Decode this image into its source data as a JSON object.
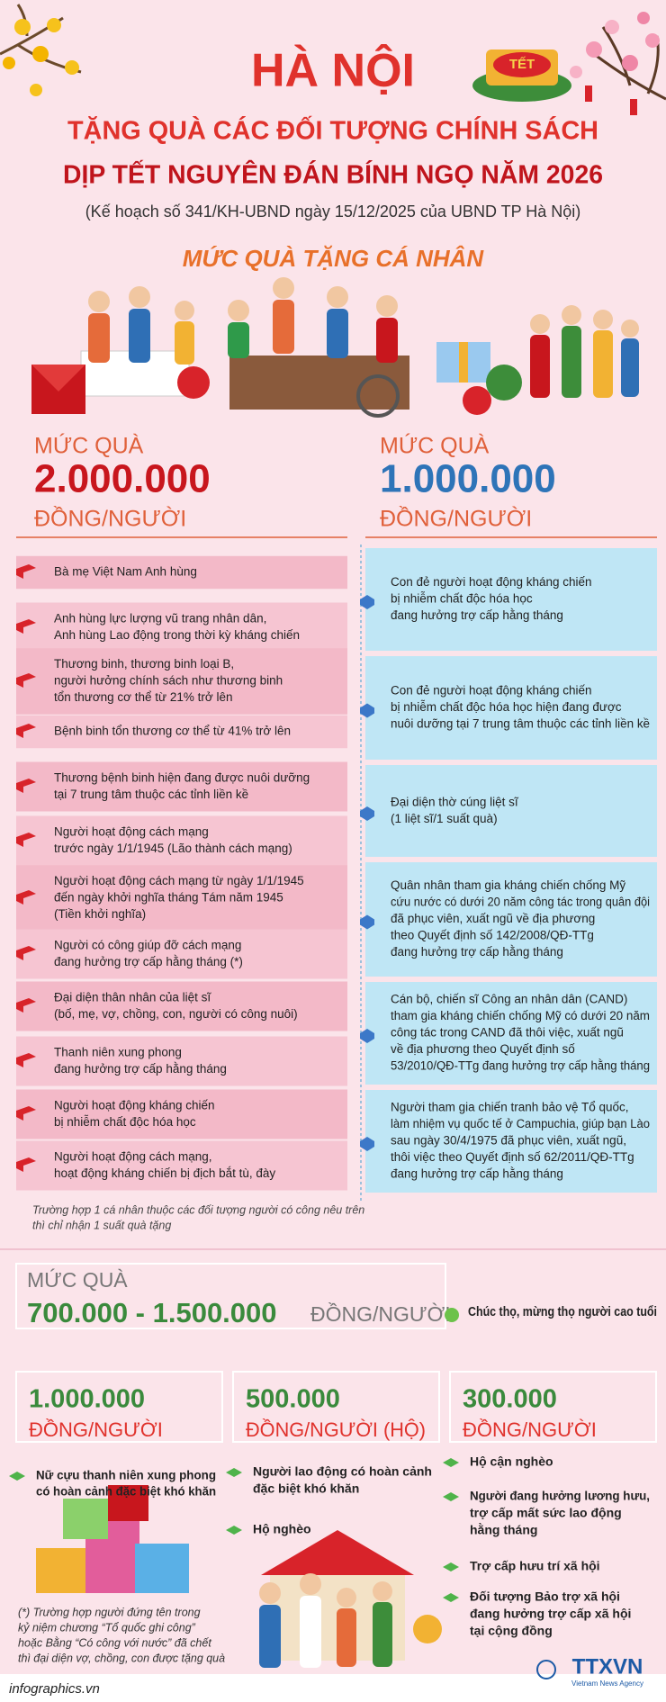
{
  "header": {
    "title": "HÀ NỘI",
    "subtitle1": "TẶNG QUÀ CÁC ĐỐI TƯỢNG CHÍNH SÁCH",
    "subtitle2": "DỊP TẾT NGUYÊN ĐÁN BÍNH NGỌ NĂM 2026",
    "note": "(Kế hoạch số 341/KH-UBND ngày 15/12/2025 của UBND TP Hà Nội)",
    "badge": "TẾT"
  },
  "section_title": "MỨC QUÀ TẶNG CÁ NHÂN",
  "personal": {
    "left": {
      "label": "MỨC QUÀ",
      "amount": "2.000.000",
      "unit": "ĐỒNG/NGƯỜI",
      "items": [
        [
          "Bà mẹ Việt Nam Anh hùng"
        ],
        [
          "Anh hùng lực lượng vũ trang nhân dân,",
          "Anh hùng Lao động trong thời kỳ kháng chiến"
        ],
        [
          "Thương binh, thương binh loại B,",
          "người hưởng chính sách như thương binh",
          "tổn thương cơ thể từ 21% trở lên"
        ],
        [
          "Bệnh binh tổn thương cơ thể từ 41% trở lên"
        ],
        [
          "Thương bệnh binh hiện đang được nuôi dưỡng",
          "tại 7 trung tâm thuộc các tỉnh liền kề"
        ],
        [
          "Người hoạt động cách mạng",
          "trước ngày 1/1/1945 (Lão thành cách mạng)"
        ],
        [
          "Người hoạt động cách mạng từ ngày 1/1/1945",
          "đến ngày khởi nghĩa tháng Tám năm 1945",
          "(Tiền khởi nghĩa)"
        ],
        [
          "Người có công giúp đỡ cách mạng",
          "đang hưởng trợ cấp hằng tháng (*)"
        ],
        [
          "Đại diện thân nhân của liệt sĩ",
          "(bố, mẹ, vợ, chồng, con, người có công nuôi)"
        ],
        [
          "Thanh niên xung phong",
          "đang hưởng trợ cấp hằng tháng"
        ],
        [
          "Người hoạt động kháng chiến",
          "bị nhiễm chất độc hóa học"
        ],
        [
          "Người hoạt động cách mạng,",
          "hoạt động kháng chiến bị địch bắt tù, đày"
        ]
      ]
    },
    "right": {
      "label": "MỨC QUÀ",
      "amount": "1.000.000",
      "unit": "ĐỒNG/NGƯỜI",
      "items": [
        [
          "Con đẻ người hoạt động kháng chiến",
          "bị nhiễm chất độc hóa học",
          "đang hưởng trợ cấp hằng tháng"
        ],
        [
          "Con đẻ người hoạt động kháng chiến",
          "bị nhiễm chất độc hóa học hiện đang được",
          "nuôi dưỡng tại 7 trung tâm thuộc các tỉnh liền kề"
        ],
        [
          "Đại diện thờ cúng liệt sĩ",
          "(1 liệt sĩ/1 suất quà)"
        ],
        [
          "Quân nhân tham gia kháng chiến chống Mỹ",
          "cứu nước có dưới 20 năm công tác trong quân đội",
          "đã phục viên, xuất ngũ về địa phương",
          "theo Quyết định số 142/2008/QĐ-TTg",
          "đang hưởng trợ cấp hằng tháng"
        ],
        [
          "Cán bộ, chiến sĩ Công an nhân dân (CAND)",
          "tham gia kháng chiến chống Mỹ có dưới 20 năm",
          "công tác trong CAND đã thôi việc, xuất ngũ",
          "về địa phương theo Quyết định số",
          "53/2010/QĐ-TTg đang hưởng trợ cấp hằng tháng"
        ],
        [
          "Người tham gia chiến tranh bảo vệ Tổ quốc,",
          "làm nhiệm vụ quốc tế ở Campuchia, giúp bạn Lào",
          "sau ngày 30/4/1975 đã phục viên, xuất ngũ,",
          "thôi việc theo Quyết định số 62/2011/QĐ-TTg",
          "đang hưởng trợ cấp hằng tháng"
        ]
      ]
    },
    "footnote": [
      "Trường hợp 1 cá nhân thuộc các đối tượng người có công nêu trên",
      "thì chỉ nhận 1 suất quà tặng"
    ]
  },
  "elderly": {
    "label": "MỨC QUÀ",
    "amount": "700.000 - 1.500.000",
    "unit": "ĐỒNG/NGƯỜI",
    "item": "Chúc thọ, mừng thọ người cao tuổi"
  },
  "groups": [
    {
      "amount": "1.000.000",
      "unit": "ĐỒNG/NGƯỜI",
      "items": [
        [
          "Nữ cựu thanh niên xung phong",
          "có hoàn cảnh đặc biệt khó khăn"
        ]
      ]
    },
    {
      "amount": "500.000",
      "unit": "ĐỒNG/NGƯỜI (HỘ)",
      "items": [
        [
          "Người lao động có hoàn cảnh",
          "đặc biệt khó khăn"
        ],
        [
          "Hộ nghèo"
        ]
      ]
    },
    {
      "amount": "300.000",
      "unit": "ĐỒNG/NGƯỜI",
      "items": [
        [
          "Hộ cận nghèo"
        ],
        [
          "Người đang hưởng lương hưu,",
          "trợ cấp mất sức lao động",
          "hằng tháng"
        ],
        [
          "Trợ cấp hưu trí xã hội"
        ],
        [
          "Đối tượng Bảo trợ xã hội",
          "đang hưởng trợ cấp xã hội",
          "tại cộng đồng"
        ]
      ]
    }
  ],
  "bottom_note": [
    "(*) Trường hợp người đứng tên trong",
    "kỷ niệm chương “Tổ quốc ghi công”",
    "hoặc Bằng “Có công với nước” đã chết",
    "thì đại diện vợ, chồng, con được tặng quà"
  ],
  "footer": {
    "site": "infographics.vn",
    "logo": "TTXVN",
    "agency": "Vietnam News Agency"
  }
}
